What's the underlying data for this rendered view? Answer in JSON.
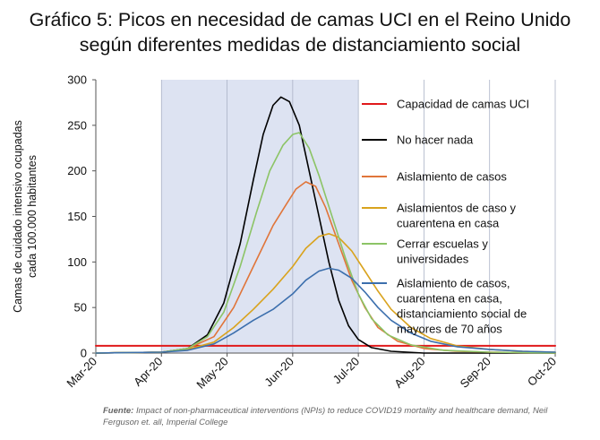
{
  "title": {
    "line1": "Gráfico 5: Picos en necesidad de camas UCI en el Reino Unido",
    "line2": "según diferentes medidas de distanciamiento social"
  },
  "source": {
    "label": "Fuente:",
    "text": "Impact of non-pharmaceutical interventions (NPIs) to reduce COVID19 mortality and healthcare demand, Neil Ferguson et. all, Imperial College"
  },
  "chart_data": {
    "type": "line",
    "ylabel_lines": [
      "Camas de cuidado intensivo ocupadas",
      "cada 100.000 habitantes"
    ],
    "xlabel": "",
    "x_ticks": [
      "Mar-20",
      "Apr-20",
      "May-20",
      "Jun-20",
      "Jul-20",
      "Aug-20",
      "Sep-20",
      "Oct-20"
    ],
    "y_ticks": [
      0,
      50,
      100,
      150,
      200,
      250,
      300
    ],
    "xlim": [
      0,
      7
    ],
    "ylim": [
      0,
      300
    ],
    "grid": "vertical",
    "legend_position": "right",
    "shaded_region": {
      "x_start": 1.0,
      "x_end": 4.0,
      "color": "#dde3f2"
    },
    "series": [
      {
        "name": "Capacidad de camas UCI",
        "color": "#e0191b",
        "width": 2,
        "points": [
          [
            0,
            8
          ],
          [
            7,
            8
          ]
        ]
      },
      {
        "name": "No hacer nada",
        "color": "#000000",
        "width": 1.6,
        "points": [
          [
            0,
            0
          ],
          [
            1.0,
            1
          ],
          [
            1.4,
            5
          ],
          [
            1.7,
            20
          ],
          [
            1.95,
            55
          ],
          [
            2.2,
            120
          ],
          [
            2.4,
            190
          ],
          [
            2.55,
            240
          ],
          [
            2.7,
            272
          ],
          [
            2.82,
            281
          ],
          [
            2.95,
            276
          ],
          [
            3.1,
            250
          ],
          [
            3.25,
            200
          ],
          [
            3.4,
            150
          ],
          [
            3.55,
            100
          ],
          [
            3.7,
            58
          ],
          [
            3.85,
            30
          ],
          [
            4.0,
            15
          ],
          [
            4.2,
            6
          ],
          [
            4.5,
            2
          ],
          [
            5.0,
            0
          ],
          [
            7,
            0
          ]
        ]
      },
      {
        "name": "Aislamiento de casos",
        "color": "#e0753a",
        "width": 1.6,
        "points": [
          [
            0,
            0
          ],
          [
            1.0,
            1
          ],
          [
            1.4,
            5
          ],
          [
            1.8,
            18
          ],
          [
            2.1,
            50
          ],
          [
            2.4,
            95
          ],
          [
            2.7,
            140
          ],
          [
            2.9,
            163
          ],
          [
            3.05,
            180
          ],
          [
            3.2,
            188
          ],
          [
            3.35,
            183
          ],
          [
            3.5,
            160
          ],
          [
            3.7,
            120
          ],
          [
            3.9,
            80
          ],
          [
            4.1,
            50
          ],
          [
            4.3,
            28
          ],
          [
            4.6,
            13
          ],
          [
            5.0,
            5
          ],
          [
            5.5,
            2
          ],
          [
            6.0,
            1
          ],
          [
            7,
            0
          ]
        ]
      },
      {
        "name": "Aislamientos de caso y cuarentena en casa",
        "color": "#d9a31e",
        "width": 1.6,
        "points": [
          [
            0,
            0
          ],
          [
            1.0,
            1
          ],
          [
            1.4,
            4
          ],
          [
            1.8,
            12
          ],
          [
            2.1,
            28
          ],
          [
            2.4,
            48
          ],
          [
            2.7,
            70
          ],
          [
            3.0,
            95
          ],
          [
            3.2,
            115
          ],
          [
            3.4,
            128
          ],
          [
            3.55,
            131
          ],
          [
            3.7,
            127
          ],
          [
            3.9,
            112
          ],
          [
            4.1,
            90
          ],
          [
            4.3,
            68
          ],
          [
            4.5,
            48
          ],
          [
            4.8,
            28
          ],
          [
            5.1,
            16
          ],
          [
            5.5,
            8
          ],
          [
            6.0,
            4
          ],
          [
            6.5,
            2
          ],
          [
            7,
            1
          ]
        ]
      },
      {
        "name": "Cerrar escuelas y universidades",
        "color": "#8cc466",
        "width": 1.6,
        "points": [
          [
            0,
            0
          ],
          [
            1.0,
            1
          ],
          [
            1.4,
            5
          ],
          [
            1.7,
            18
          ],
          [
            1.95,
            45
          ],
          [
            2.2,
            95
          ],
          [
            2.45,
            155
          ],
          [
            2.65,
            200
          ],
          [
            2.85,
            228
          ],
          [
            3.0,
            240
          ],
          [
            3.1,
            242
          ],
          [
            3.25,
            225
          ],
          [
            3.4,
            195
          ],
          [
            3.6,
            150
          ],
          [
            3.8,
            105
          ],
          [
            4.0,
            65
          ],
          [
            4.2,
            38
          ],
          [
            4.45,
            20
          ],
          [
            4.8,
            9
          ],
          [
            5.3,
            3
          ],
          [
            6.0,
            1
          ],
          [
            7,
            0
          ]
        ]
      },
      {
        "name": "Aislamiento de casos, cuarentena en casa, distanciamiento social de mayores de 70 años",
        "color": "#3c6fad",
        "width": 1.6,
        "points": [
          [
            0,
            0
          ],
          [
            1.0,
            1
          ],
          [
            1.4,
            3
          ],
          [
            1.8,
            10
          ],
          [
            2.1,
            22
          ],
          [
            2.4,
            36
          ],
          [
            2.7,
            48
          ],
          [
            3.0,
            65
          ],
          [
            3.2,
            80
          ],
          [
            3.4,
            90
          ],
          [
            3.55,
            93
          ],
          [
            3.7,
            91
          ],
          [
            3.9,
            82
          ],
          [
            4.1,
            67
          ],
          [
            4.3,
            50
          ],
          [
            4.5,
            36
          ],
          [
            4.8,
            22
          ],
          [
            5.1,
            13
          ],
          [
            5.5,
            7
          ],
          [
            6.0,
            4
          ],
          [
            6.5,
            2
          ],
          [
            7,
            1
          ]
        ]
      }
    ]
  }
}
